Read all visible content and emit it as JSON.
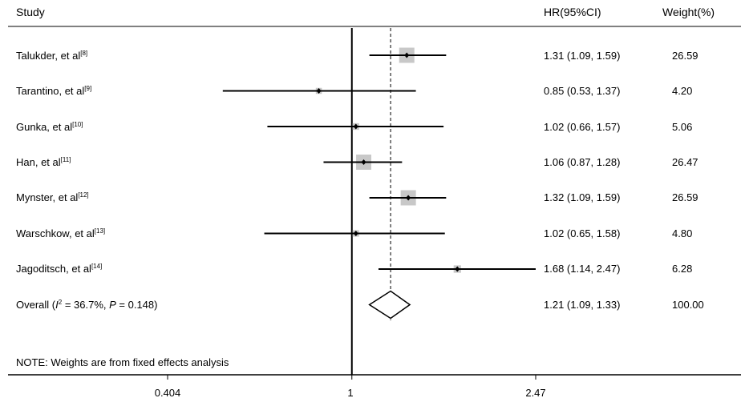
{
  "header": {
    "study": "Study",
    "hr": "HR(95%CI)",
    "weight": "Weight(%)"
  },
  "studies": [
    {
      "author": "Talukder, et al",
      "ref": "[8]",
      "hr_text": "1.31 (1.09, 1.59)",
      "weight_text": "26.59"
    },
    {
      "author": "Tarantino, et al",
      "ref": "[9]",
      "hr_text": "0.85 (0.53, 1.37)",
      "weight_text": "4.20"
    },
    {
      "author": "Gunka, et al",
      "ref": "[10]",
      "hr_text": "1.02 (0.66, 1.57)",
      "weight_text": "5.06"
    },
    {
      "author": "Han, et al",
      "ref": "[11]",
      "hr_text": "1.06 (0.87, 1.28)",
      "weight_text": "26.47"
    },
    {
      "author": "Mynster, et al",
      "ref": "[12]",
      "hr_text": "1.32 (1.09, 1.59)",
      "weight_text": "26.59"
    },
    {
      "author": "Warschkow, et al",
      "ref": "[13]",
      "hr_text": "1.02 (0.65, 1.58)",
      "weight_text": "4.80"
    },
    {
      "author": "Jagoditsch, et al",
      "ref": "[14]",
      "hr_text": "1.68 (1.14, 2.47)",
      "weight_text": "6.28"
    }
  ],
  "overall": {
    "label_prefix": "Overall  (",
    "i2_symbol": "I",
    "i2_sup": "2",
    "i2_text": " = 36.7%, ",
    "p_symbol": "P",
    "p_text": " = 0.148)",
    "hr_text": "1.21 (1.09, 1.33)",
    "weight_text": "100.00"
  },
  "note": "NOTE: Weights are from fixed effects analysis",
  "chart_data": {
    "type": "forest",
    "xscale": "log",
    "xlim": [
      0.404,
      2.47
    ],
    "ticks": [
      "0.404",
      "1",
      "2.47"
    ],
    "null_line": 1,
    "summary_line": 1.21,
    "series": [
      {
        "name": "Talukder",
        "hr": 1.31,
        "lower": 1.09,
        "upper": 1.59,
        "weight": 26.59
      },
      {
        "name": "Tarantino",
        "hr": 0.85,
        "lower": 0.53,
        "upper": 1.37,
        "weight": 4.2
      },
      {
        "name": "Gunka",
        "hr": 1.02,
        "lower": 0.66,
        "upper": 1.57,
        "weight": 5.06
      },
      {
        "name": "Han",
        "hr": 1.06,
        "lower": 0.87,
        "upper": 1.28,
        "weight": 26.47
      },
      {
        "name": "Mynster",
        "hr": 1.32,
        "lower": 1.09,
        "upper": 1.59,
        "weight": 26.59
      },
      {
        "name": "Warschkow",
        "hr": 1.02,
        "lower": 0.65,
        "upper": 1.58,
        "weight": 4.8
      },
      {
        "name": "Jagoditsch",
        "hr": 1.68,
        "lower": 1.14,
        "upper": 2.47,
        "weight": 6.28
      }
    ],
    "overall": {
      "hr": 1.21,
      "lower": 1.09,
      "upper": 1.33,
      "weight": 100.0
    },
    "colors": {
      "box": "#c8c8c8",
      "line": "#000000"
    }
  }
}
